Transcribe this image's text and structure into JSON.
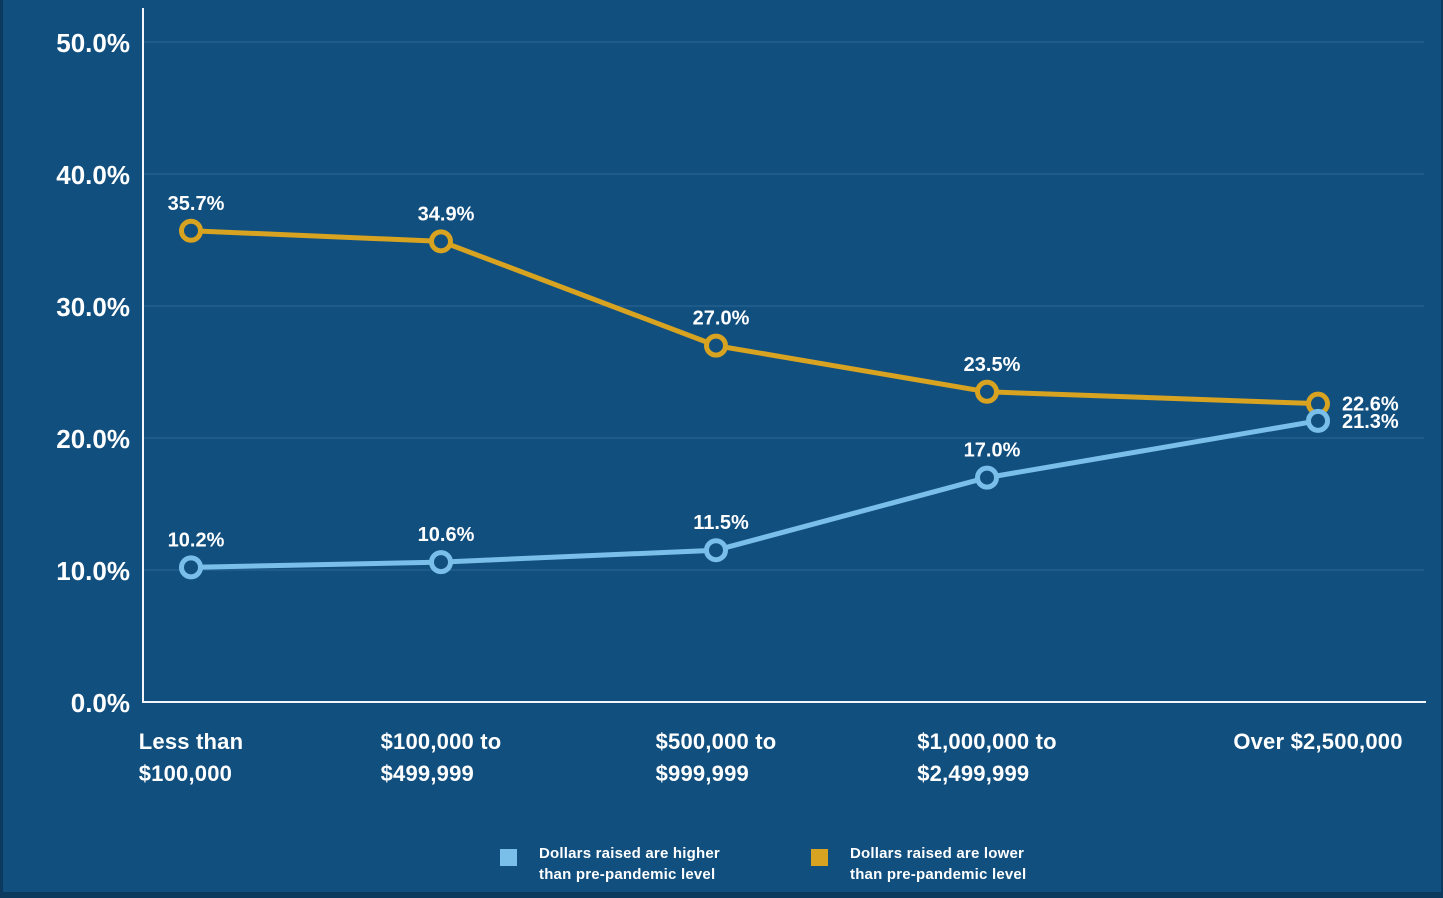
{
  "chart_data": {
    "type": "line",
    "title": "",
    "xlabel": "",
    "ylabel": "",
    "categories": [
      {
        "lines": [
          "Less than",
          "$100,000"
        ]
      },
      {
        "lines": [
          "$100,000 to",
          "$499,999"
        ]
      },
      {
        "lines": [
          "$500,000 to",
          "$999,999"
        ]
      },
      {
        "lines": [
          "$1,000,000 to",
          "$2,499,999"
        ]
      },
      {
        "lines": [
          "Over $2,500,000"
        ]
      }
    ],
    "series": [
      {
        "name": "Dollars raised are lower than pre-pandemic level",
        "legend_lines": [
          "Dollars raised are lower",
          "than pre-pandemic level"
        ],
        "color": "#D7A321",
        "values": [
          35.7,
          34.9,
          27.0,
          23.5,
          22.6
        ],
        "data_labels": [
          "35.7%",
          "34.9%",
          "27.0%",
          "23.5%",
          "22.6%"
        ]
      },
      {
        "name": "Dollars raised are higher than pre-pandemic level",
        "legend_lines": [
          "Dollars raised are higher",
          "than pre-pandemic level"
        ],
        "color": "#79BFEA",
        "values": [
          10.2,
          10.6,
          11.5,
          17.0,
          21.3
        ],
        "data_labels": [
          "10.2%",
          "10.6%",
          "11.5%",
          "17.0%",
          "21.3%"
        ]
      }
    ],
    "y_axis": {
      "min": 0,
      "max": 50,
      "tick_step": 10,
      "tick_labels": [
        "0.0%",
        "10.0%",
        "20.0%",
        "30.0%",
        "40.0%",
        "50.0%"
      ]
    },
    "grid": true,
    "legend_position": "bottom",
    "colors": {
      "background": "#114F7F",
      "frame": "#0C3A5F",
      "grid": "#2A6795",
      "axis": "#F2F6FA",
      "text": "#FFFFFF"
    }
  }
}
